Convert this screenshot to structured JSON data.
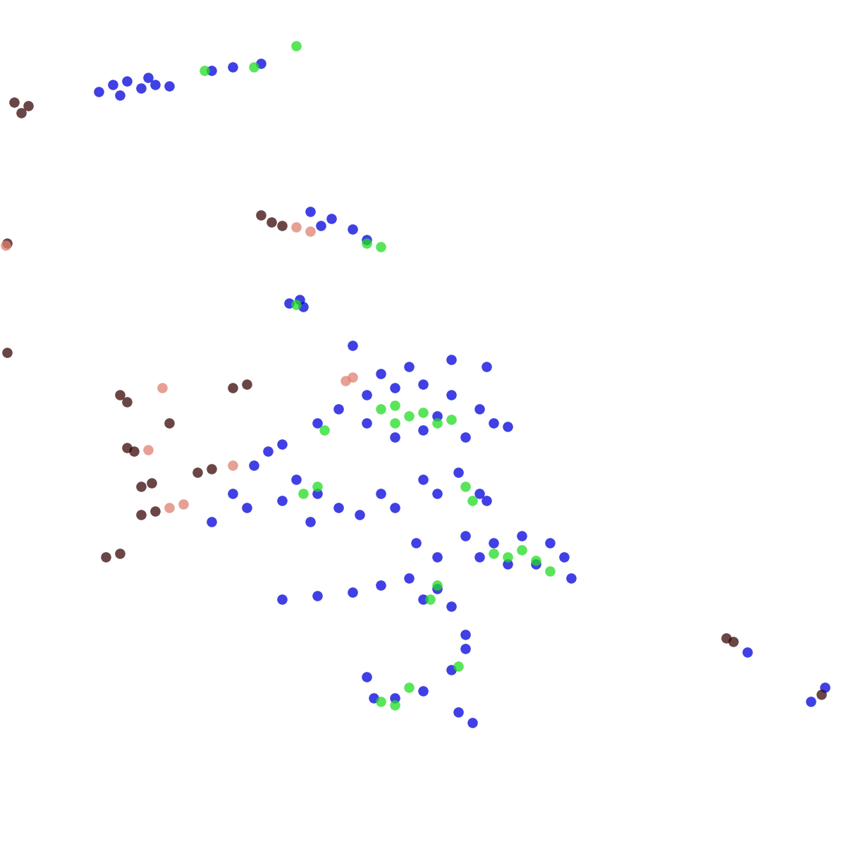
{
  "chart_data": {
    "type": "scatter",
    "xlim": [
      0,
      1200
    ],
    "ylim": [
      1200,
      0
    ],
    "tick_labels": false,
    "grid": false,
    "series": [
      {
        "color": "#0000dd",
        "marker": "o",
        "x": [
          140,
          160,
          180,
          200,
          220,
          240,
          170,
          210,
          300,
          330,
          370,
          440,
          470,
          500,
          520,
          455,
          410,
          430,
          425,
          500,
          640,
          690,
          450,
          480,
          520,
          560,
          600,
          640,
          680,
          700,
          720,
          600,
          560,
          520,
          620,
          660,
          540,
          580,
          300,
          330,
          360,
          380,
          400,
          420,
          450,
          480,
          510,
          540,
          560,
          440,
          350,
          400,
          600,
          620,
          650,
          680,
          690,
          590,
          620,
          660,
          700,
          740,
          780,
          800,
          810,
          760,
          720,
          680,
          400,
          450,
          500,
          540,
          580,
          620,
          640,
          600,
          520,
          560,
          600,
          640,
          660,
          650,
          670,
          530,
          660,
          1060,
          1150,
          1170
        ],
        "y": [
          130,
          120,
          115,
          125,
          120,
          122,
          135,
          110,
          100,
          95,
          90,
          300,
          310,
          325,
          340,
          320,
          430,
          435,
          425,
          490,
          510,
          520,
          600,
          580,
          560,
          550,
          545,
          560,
          580,
          600,
          605,
          610,
          620,
          600,
          590,
          620,
          530,
          520,
          740,
          700,
          660,
          640,
          630,
          680,
          700,
          720,
          730,
          700,
          720,
          740,
          720,
          710,
          680,
          700,
          670,
          700,
          710,
          770,
          790,
          760,
          770,
          760,
          770,
          790,
          820,
          800,
          800,
          790,
          850,
          845,
          840,
          830,
          820,
          835,
          860,
          850,
          960,
          990,
          980,
          950,
          920,
          1010,
          1025,
          990,
          900,
          925,
          995,
          975
        ]
      },
      {
        "color": "#22dd22",
        "marker": "o",
        "x": [
          420,
          360,
          290,
          540,
          520,
          420,
          540,
          560,
          580,
          600,
          620,
          640,
          560,
          460,
          660,
          670,
          430,
          450,
          700,
          720,
          740,
          760,
          780,
          610,
          620,
          650,
          560,
          580,
          540
        ],
        "y": [
          65,
          95,
          100,
          350,
          345,
          432,
          580,
          575,
          590,
          585,
          600,
          595,
          600,
          610,
          690,
          710,
          700,
          690,
          785,
          790,
          780,
          795,
          810,
          850,
          830,
          945,
          1000,
          975,
          995
        ]
      },
      {
        "color": "#3a0808",
        "marker": "o",
        "x": [
          20,
          40,
          30,
          370,
          385,
          400,
          170,
          180,
          330,
          350,
          190,
          180,
          240,
          200,
          215,
          200,
          220,
          150,
          170,
          1040,
          1030,
          1165,
          10,
          10,
          300,
          280
        ],
        "y": [
          145,
          150,
          160,
          305,
          315,
          320,
          560,
          570,
          550,
          545,
          640,
          635,
          600,
          690,
          685,
          730,
          725,
          790,
          785,
          910,
          905,
          985,
          500,
          345,
          665,
          670
        ]
      },
      {
        "color": "#e08070",
        "marker": "o",
        "x": [
          420,
          440,
          230,
          490,
          500,
          330,
          260,
          210,
          8,
          240
        ],
        "y": [
          322,
          328,
          550,
          540,
          535,
          660,
          715,
          638,
          348,
          720
        ]
      }
    ]
  }
}
